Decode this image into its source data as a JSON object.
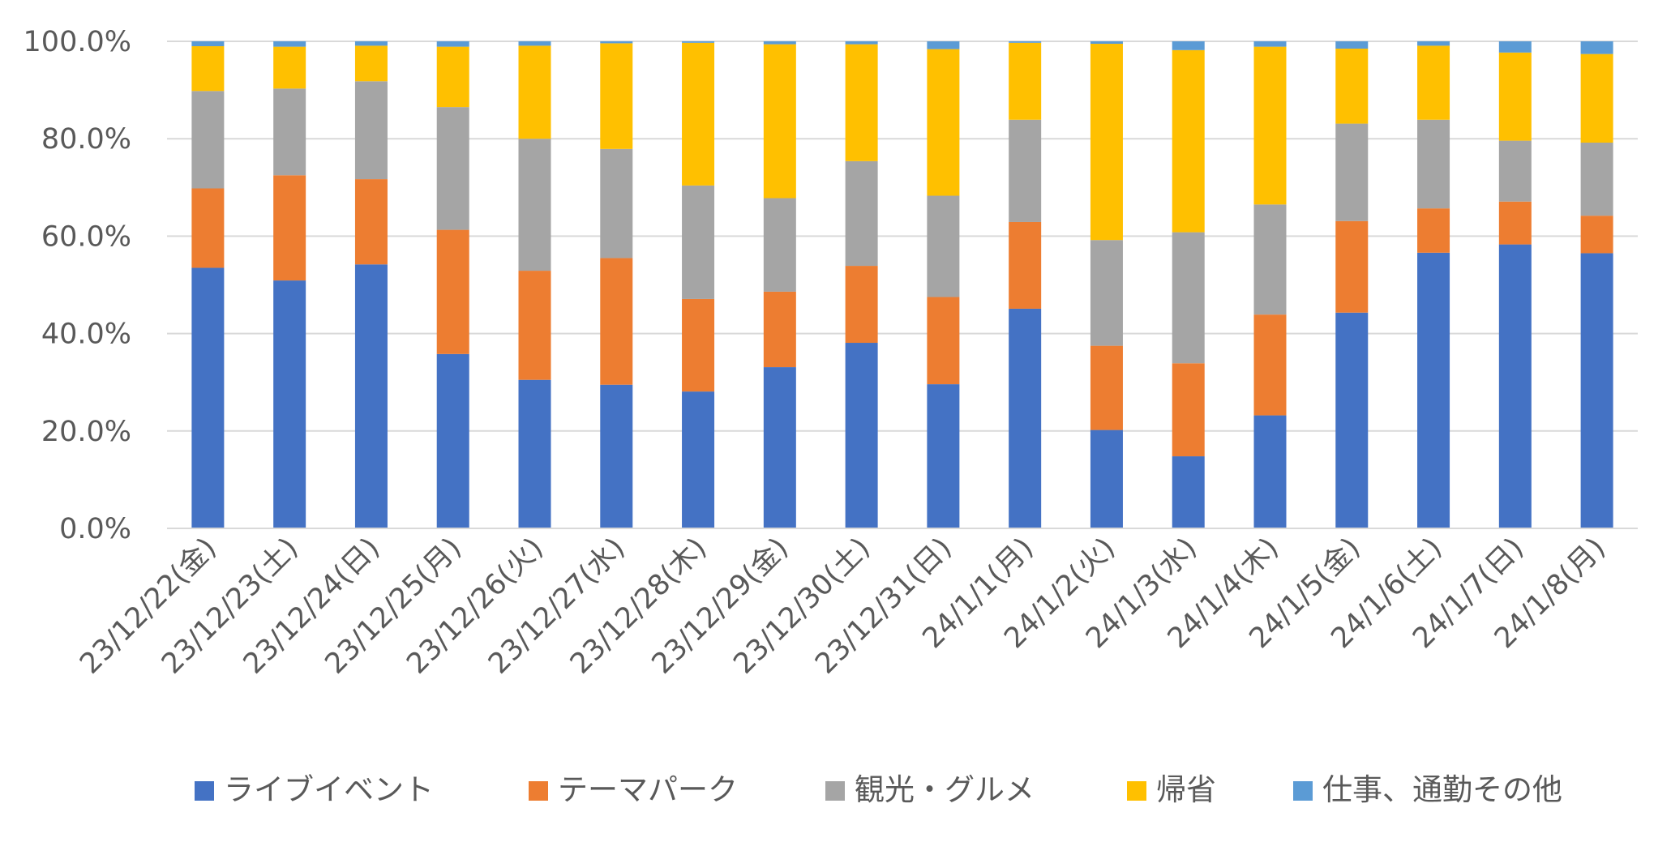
{
  "chart_data": {
    "type": "bar",
    "stacked": true,
    "percent": true,
    "title": "",
    "xlabel": "",
    "ylabel": "",
    "ylim": [
      0,
      100
    ],
    "yticks": [
      "0.0%",
      "20.0%",
      "40.0%",
      "60.0%",
      "80.0%",
      "100.0%"
    ],
    "grid": true,
    "legend_position": "bottom",
    "categories": [
      "23/12/22(金)",
      "23/12/23(土)",
      "23/12/24(日)",
      "23/12/25(月)",
      "23/12/26(火)",
      "23/12/27(水)",
      "23/12/28(木)",
      "23/12/29(金)",
      "23/12/30(土)",
      "23/12/31(日)",
      "24/1/1(月)",
      "24/1/2(火)",
      "24/1/3(水)",
      "24/1/4(木)",
      "24/1/5(金)",
      "24/1/6(土)",
      "24/1/7(日)",
      "24/1/8(月)"
    ],
    "series": [
      {
        "name": "ライブイベント",
        "color": "#4472C4",
        "values": [
          53.5,
          50.9,
          54.2,
          35.8,
          30.5,
          29.5,
          28.1,
          33.1,
          38.1,
          29.6,
          45.1,
          20.2,
          14.8,
          23.2,
          44.3,
          56.6,
          58.3,
          56.5
        ]
      },
      {
        "name": "テーマパーク",
        "color": "#ED7D31",
        "values": [
          16.3,
          21.6,
          17.5,
          25.5,
          22.4,
          26.0,
          19.0,
          15.5,
          15.8,
          17.9,
          17.8,
          17.3,
          19.1,
          20.7,
          18.8,
          9.1,
          8.8,
          7.7
        ]
      },
      {
        "name": "観光・グルメ",
        "color": "#A5A5A5",
        "values": [
          20.0,
          17.8,
          20.1,
          25.2,
          27.1,
          22.4,
          23.3,
          19.2,
          21.5,
          20.8,
          21.0,
          21.7,
          26.9,
          22.6,
          20.0,
          18.2,
          12.5,
          15.0
        ]
      },
      {
        "name": "帰省",
        "color": "#FFC000",
        "values": [
          9.2,
          8.6,
          7.3,
          12.4,
          19.1,
          21.7,
          29.3,
          31.6,
          24.0,
          30.1,
          15.8,
          40.3,
          37.4,
          32.4,
          15.4,
          15.2,
          18.1,
          18.2
        ]
      },
      {
        "name": "仕事、通勤その他",
        "color": "#5B9BD5",
        "values": [
          1.0,
          1.1,
          0.9,
          1.1,
          0.9,
          0.4,
          0.3,
          0.6,
          0.6,
          1.6,
          0.3,
          0.5,
          1.8,
          1.1,
          1.5,
          0.9,
          2.3,
          2.6
        ]
      }
    ]
  }
}
